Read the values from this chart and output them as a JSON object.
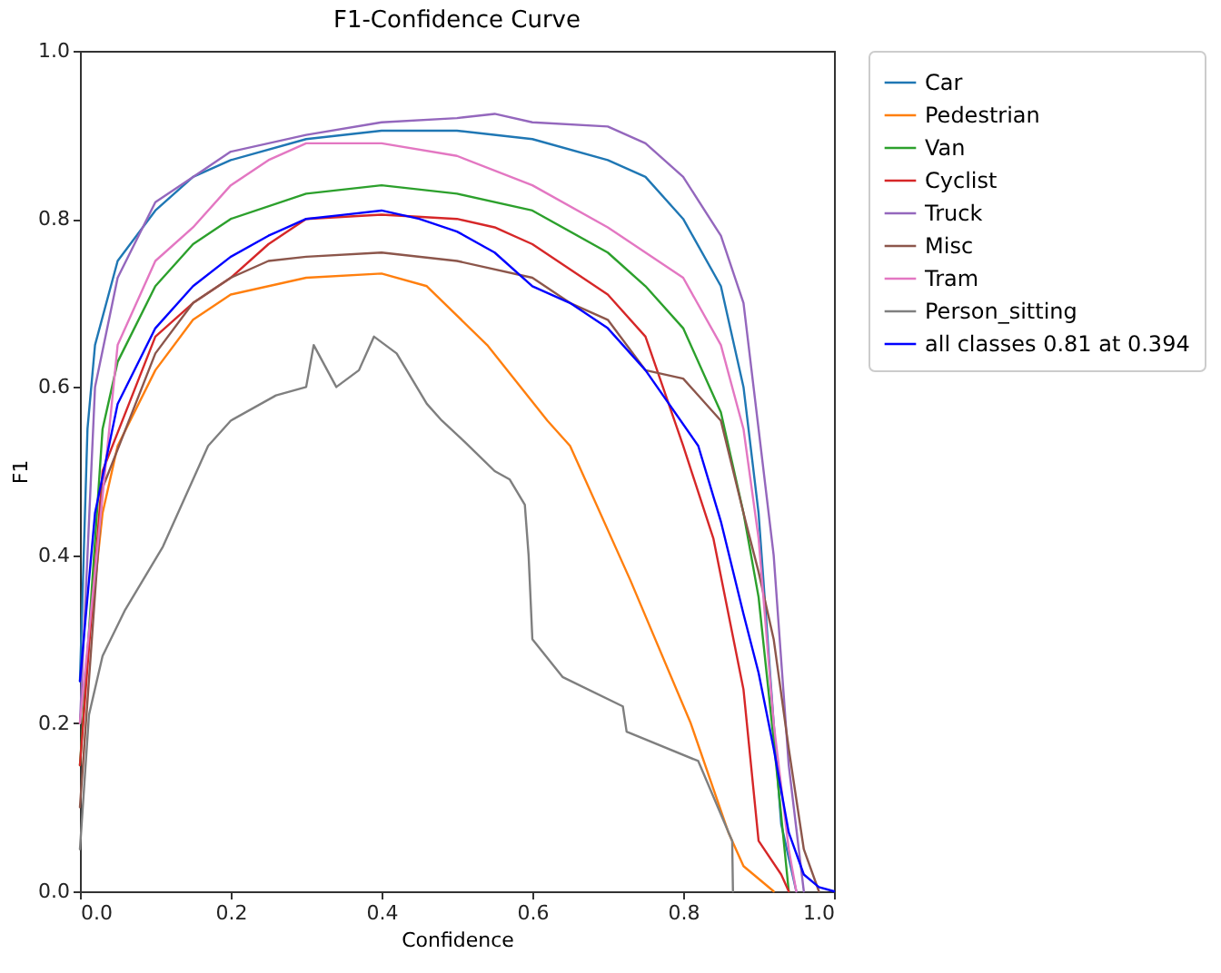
{
  "chart_data": {
    "type": "line",
    "title": "F1-Confidence Curve",
    "xlabel": "Confidence",
    "ylabel": "F1",
    "xlim": [
      0,
      1
    ],
    "ylim": [
      0,
      1
    ],
    "xticks": [
      {
        "value": 0,
        "label": "0.0"
      },
      {
        "value": 0.2,
        "label": "0.2"
      },
      {
        "value": 0.4,
        "label": "0.4"
      },
      {
        "value": 0.6,
        "label": "0.6"
      },
      {
        "value": 0.8,
        "label": "0.8"
      },
      {
        "value": 1,
        "label": "1.0"
      }
    ],
    "yticks": [
      {
        "value": 0,
        "label": "0.0"
      },
      {
        "value": 0.2,
        "label": "0.2"
      },
      {
        "value": 0.4,
        "label": "0.4"
      },
      {
        "value": 0.6,
        "label": "0.6"
      },
      {
        "value": 0.8,
        "label": "0.8"
      },
      {
        "value": 1,
        "label": "1.0"
      }
    ],
    "grid": false,
    "legend": "top right",
    "marker": "none",
    "line_style": "solid",
    "series": [
      {
        "name": "Car",
        "color": "#1f77b4",
        "x": [
          0,
          0.01,
          0.02,
          0.05,
          0.1,
          0.15,
          0.2,
          0.3,
          0.4,
          0.5,
          0.6,
          0.7,
          0.75,
          0.8,
          0.85,
          0.88,
          0.9,
          0.92,
          0.93,
          0.95
        ],
        "values": [
          0.25,
          0.55,
          0.65,
          0.75,
          0.81,
          0.85,
          0.87,
          0.895,
          0.905,
          0.905,
          0.895,
          0.87,
          0.85,
          0.8,
          0.72,
          0.6,
          0.45,
          0.2,
          0.08,
          0
        ]
      },
      {
        "name": "Pedestrian",
        "color": "#ff7f0e",
        "x": [
          0,
          0.03,
          0.05,
          0.1,
          0.15,
          0.2,
          0.3,
          0.4,
          0.46,
          0.54,
          0.62,
          0.65,
          0.73,
          0.81,
          0.86,
          0.88,
          0.92
        ],
        "values": [
          0.2,
          0.45,
          0.53,
          0.62,
          0.68,
          0.71,
          0.73,
          0.735,
          0.72,
          0.65,
          0.56,
          0.53,
          0.37,
          0.2,
          0.07,
          0.03,
          0
        ]
      },
      {
        "name": "Van",
        "color": "#2ca02c",
        "x": [
          0,
          0.03,
          0.05,
          0.1,
          0.15,
          0.2,
          0.3,
          0.4,
          0.5,
          0.6,
          0.7,
          0.75,
          0.8,
          0.85,
          0.88,
          0.9,
          0.92,
          0.94
        ],
        "values": [
          0.15,
          0.55,
          0.63,
          0.72,
          0.77,
          0.8,
          0.83,
          0.84,
          0.83,
          0.81,
          0.76,
          0.72,
          0.67,
          0.57,
          0.45,
          0.35,
          0.18,
          0
        ]
      },
      {
        "name": "Cyclist",
        "color": "#d62728",
        "x": [
          0,
          0.03,
          0.1,
          0.15,
          0.2,
          0.25,
          0.3,
          0.4,
          0.5,
          0.55,
          0.6,
          0.65,
          0.7,
          0.75,
          0.8,
          0.84,
          0.88,
          0.9,
          0.93,
          0.94
        ],
        "values": [
          0.15,
          0.5,
          0.66,
          0.7,
          0.73,
          0.77,
          0.8,
          0.805,
          0.8,
          0.79,
          0.77,
          0.74,
          0.71,
          0.66,
          0.53,
          0.42,
          0.24,
          0.06,
          0.02,
          0
        ]
      },
      {
        "name": "Truck",
        "color": "#9467bd",
        "x": [
          0,
          0.02,
          0.05,
          0.1,
          0.15,
          0.2,
          0.3,
          0.4,
          0.5,
          0.55,
          0.6,
          0.7,
          0.75,
          0.8,
          0.85,
          0.88,
          0.9,
          0.92,
          0.94,
          0.96
        ],
        "values": [
          0.2,
          0.6,
          0.73,
          0.82,
          0.85,
          0.88,
          0.9,
          0.915,
          0.92,
          0.925,
          0.915,
          0.91,
          0.89,
          0.85,
          0.78,
          0.7,
          0.55,
          0.4,
          0.15,
          0
        ]
      },
      {
        "name": "Misc",
        "color": "#8c564b",
        "x": [
          0,
          0.03,
          0.1,
          0.15,
          0.2,
          0.25,
          0.3,
          0.4,
          0.5,
          0.6,
          0.65,
          0.7,
          0.75,
          0.8,
          0.85,
          0.88,
          0.9,
          0.92,
          0.94,
          0.96,
          0.98
        ],
        "values": [
          0.1,
          0.48,
          0.64,
          0.7,
          0.73,
          0.75,
          0.755,
          0.76,
          0.75,
          0.73,
          0.7,
          0.68,
          0.62,
          0.61,
          0.56,
          0.45,
          0.38,
          0.3,
          0.17,
          0.05,
          0
        ]
      },
      {
        "name": "Tram",
        "color": "#e377c2",
        "x": [
          0,
          0.05,
          0.1,
          0.15,
          0.2,
          0.25,
          0.3,
          0.4,
          0.5,
          0.6,
          0.7,
          0.8,
          0.85,
          0.88,
          0.9,
          0.92,
          0.94,
          0.95
        ],
        "values": [
          0.2,
          0.65,
          0.75,
          0.79,
          0.84,
          0.87,
          0.89,
          0.89,
          0.875,
          0.84,
          0.79,
          0.73,
          0.65,
          0.55,
          0.42,
          0.2,
          0.05,
          0
        ]
      },
      {
        "name": "Person_sitting",
        "color": "#7f7f7f",
        "x": [
          0,
          0.012,
          0.03,
          0.06,
          0.11,
          0.17,
          0.2,
          0.26,
          0.3,
          0.31,
          0.34,
          0.37,
          0.39,
          0.42,
          0.46,
          0.48,
          0.51,
          0.55,
          0.57,
          0.59,
          0.595,
          0.6,
          0.64,
          0.72,
          0.725,
          0.82,
          0.865,
          0.866
        ],
        "values": [
          0.05,
          0.21,
          0.28,
          0.335,
          0.41,
          0.53,
          0.56,
          0.59,
          0.6,
          0.65,
          0.6,
          0.62,
          0.66,
          0.64,
          0.58,
          0.56,
          0.535,
          0.5,
          0.49,
          0.46,
          0.4,
          0.3,
          0.255,
          0.22,
          0.19,
          0.155,
          0.06,
          0
        ]
      },
      {
        "name": "all classes 0.81 at 0.394",
        "color": "#0000ff",
        "x": [
          0,
          0.02,
          0.05,
          0.1,
          0.15,
          0.2,
          0.25,
          0.3,
          0.35,
          0.4,
          0.45,
          0.5,
          0.55,
          0.6,
          0.65,
          0.7,
          0.75,
          0.82,
          0.85,
          0.88,
          0.9,
          0.92,
          0.94,
          0.96,
          0.98,
          1
        ],
        "values": [
          0.25,
          0.45,
          0.58,
          0.67,
          0.72,
          0.755,
          0.78,
          0.8,
          0.805,
          0.81,
          0.8,
          0.785,
          0.76,
          0.72,
          0.7,
          0.67,
          0.62,
          0.53,
          0.44,
          0.33,
          0.26,
          0.17,
          0.07,
          0.02,
          0.005,
          0
        ]
      }
    ]
  }
}
